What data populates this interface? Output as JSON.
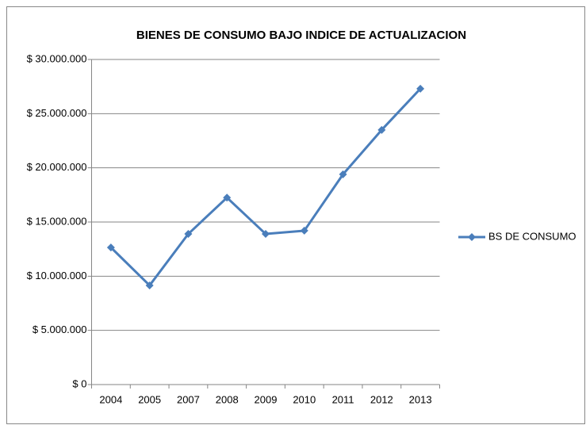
{
  "chart_data": {
    "type": "line",
    "title": "BIENES DE CONSUMO BAJO INDICE DE ACTUALIZACION",
    "categories": [
      "2004",
      "2005",
      "2007",
      "2008",
      "2009",
      "2010",
      "2011",
      "2012",
      "2013"
    ],
    "series": [
      {
        "name": "BS DE CONSUMO",
        "color": "#4a7ebb",
        "values": [
          12650000,
          9150000,
          13900000,
          17250000,
          13900000,
          14200000,
          19400000,
          23500000,
          27300000
        ]
      }
    ],
    "ylim": [
      0,
      30000000
    ],
    "yticks": [
      {
        "value": 0,
        "label": "$ 0"
      },
      {
        "value": 5000000,
        "label": "$ 5.000.000"
      },
      {
        "value": 10000000,
        "label": "$ 10.000.000"
      },
      {
        "value": 15000000,
        "label": "$ 15.000.000"
      },
      {
        "value": 20000000,
        "label": "$ 20.000.000"
      },
      {
        "value": 25000000,
        "label": "$ 25.000.000"
      },
      {
        "value": 30000000,
        "label": "$ 30.000.000"
      }
    ],
    "grid": true,
    "legend": "right"
  }
}
